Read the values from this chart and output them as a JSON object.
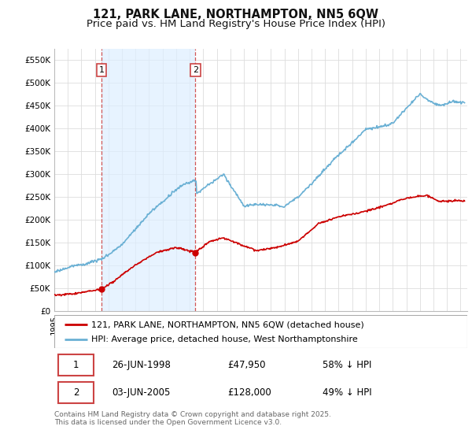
{
  "title": "121, PARK LANE, NORTHAMPTON, NN5 6QW",
  "subtitle": "Price paid vs. HM Land Registry's House Price Index (HPI)",
  "ylim": [
    0,
    575000
  ],
  "yticks": [
    0,
    50000,
    100000,
    150000,
    200000,
    250000,
    300000,
    350000,
    400000,
    450000,
    500000,
    550000
  ],
  "ytick_labels": [
    "£0",
    "£50K",
    "£100K",
    "£150K",
    "£200K",
    "£250K",
    "£300K",
    "£350K",
    "£400K",
    "£450K",
    "£500K",
    "£550K"
  ],
  "xlim_start": 1995.0,
  "xlim_end": 2025.5,
  "hpi_color": "#6ab0d4",
  "price_color": "#cc0000",
  "vline_color": "#cc4444",
  "shade_color": "#ddeeff",
  "legend_label_price": "121, PARK LANE, NORTHAMPTON, NN5 6QW (detached house)",
  "legend_label_hpi": "HPI: Average price, detached house, West Northamptonshire",
  "transaction1_date": 1998.48,
  "transaction1_price": 47950,
  "transaction2_date": 2005.42,
  "transaction2_price": 128000,
  "footer_text": "Contains HM Land Registry data © Crown copyright and database right 2025.\nThis data is licensed under the Open Government Licence v3.0.",
  "table_row1": [
    "1",
    "26-JUN-1998",
    "£47,950",
    "58% ↓ HPI"
  ],
  "table_row2": [
    "2",
    "03-JUN-2005",
    "£128,000",
    "49% ↓ HPI"
  ],
  "bg_color": "#ffffff",
  "grid_color": "#dddddd",
  "title_fontsize": 10.5,
  "subtitle_fontsize": 9.5,
  "tick_fontsize": 7.5,
  "legend_fontsize": 8,
  "table_fontsize": 8.5,
  "footer_fontsize": 6.5
}
